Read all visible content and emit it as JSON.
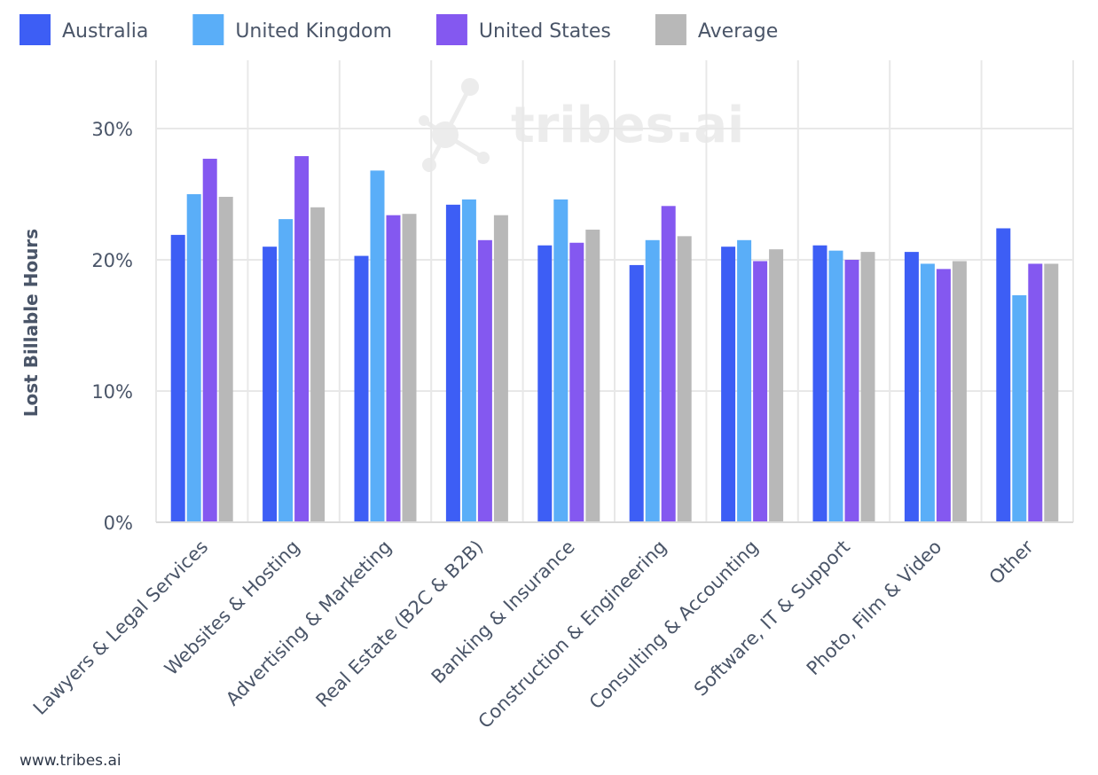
{
  "chart_data": {
    "type": "bar",
    "title": "",
    "xlabel": "",
    "ylabel": "Lost Billable Hours",
    "ylim": [
      0,
      35
    ],
    "yticks": [
      0,
      10,
      20,
      30
    ],
    "ytick_suffix": "%",
    "grid": true,
    "legend_position": "top-left",
    "categories": [
      "Lawyers & Legal Services",
      "Websites & Hosting",
      "Advertising & Marketing",
      "Real Estate (B2C & B2B)",
      "Banking & Insurance",
      "Construction & Engineering",
      "Consulting & Accounting",
      "Software, IT & Support",
      "Photo, Film & Video",
      "Other"
    ],
    "series": [
      {
        "name": "Australia",
        "color": "#3d5ef5",
        "values": [
          21.9,
          21.0,
          20.3,
          24.2,
          21.1,
          19.6,
          21.0,
          21.1,
          20.6,
          22.4
        ]
      },
      {
        "name": "United Kingdom",
        "color": "#5aaef8",
        "values": [
          25.0,
          23.1,
          26.8,
          24.6,
          24.6,
          21.5,
          21.5,
          20.7,
          19.7,
          17.3
        ]
      },
      {
        "name": "United States",
        "color": "#8458f0",
        "values": [
          27.7,
          27.9,
          23.4,
          21.5,
          21.3,
          24.1,
          19.9,
          20.0,
          19.3,
          19.7
        ]
      },
      {
        "name": "Average",
        "color": "#b8b8b8",
        "values": [
          24.8,
          24.0,
          23.5,
          23.4,
          22.3,
          21.8,
          20.8,
          20.6,
          19.9,
          19.7
        ]
      }
    ]
  },
  "watermark": {
    "text": "tribes.ai"
  },
  "footer": {
    "text": "www.tribes.ai"
  }
}
